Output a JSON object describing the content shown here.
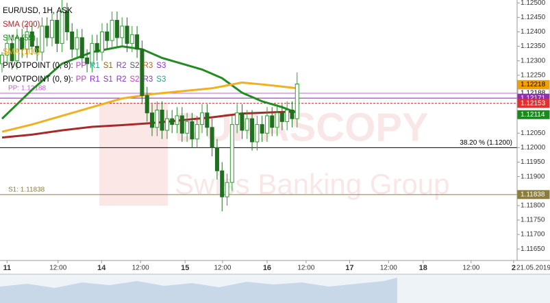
{
  "chart_data": {
    "type": "candlestick",
    "title": "EUR/USD, 1H, ASK",
    "watermark": [
      "DUKASCOPY",
      "Swiss Banking Group"
    ],
    "date_label": "21.05.2019",
    "legend": [
      {
        "text": "SMA (200)",
        "color": "#b22222"
      },
      {
        "text": "SMA (55)",
        "color": "#228b22"
      },
      {
        "text": "SMA (100)",
        "color": "#f0a000"
      }
    ],
    "pivot_legend": [
      {
        "name": "PIVOTPOINT (0, 8):",
        "items": [
          {
            "text": "PP",
            "color": "#c040c0"
          },
          {
            "text": "R1",
            "color": "#2a9d8f"
          },
          {
            "text": "S1",
            "color": "#8b6914"
          },
          {
            "text": "R2",
            "color": "#7b3fa0"
          },
          {
            "text": "S2",
            "color": "#555555"
          },
          {
            "text": "R3",
            "color": "#b5651d"
          },
          {
            "text": "S3",
            "color": "#8a2be2"
          }
        ]
      },
      {
        "name": "PIVOTPOINT (0, 9):",
        "items": [
          {
            "text": "PP",
            "color": "#c040c0"
          },
          {
            "text": "R1",
            "color": "#8a2be2"
          },
          {
            "text": "S1",
            "color": "#7b3fa0"
          },
          {
            "text": "R2",
            "color": "#8a2be2"
          },
          {
            "text": "S2",
            "color": "#c040c0"
          },
          {
            "text": "R3",
            "color": "#7b3fa0"
          },
          {
            "text": "S3",
            "color": "#2a9d8f"
          }
        ]
      }
    ],
    "open": [
      1.1229,
      1.1232,
      1.1236,
      1.123,
      1.1238,
      1.1234,
      1.124,
      1.1235,
      1.1233,
      1.1242,
      1.1238,
      1.1244,
      1.1236,
      1.1247,
      1.124,
      1.1234,
      1.1238,
      1.1231,
      1.1229,
      1.1236,
      1.1233,
      1.124,
      1.1237,
      1.1244,
      1.1238,
      1.1242,
      1.1236,
      1.1239,
      1.1234,
      1.1218,
      1.1212,
      1.1207,
      1.1213,
      1.1206,
      1.121,
      1.1208,
      1.1211,
      1.1205,
      1.1209,
      1.1203,
      1.1208,
      1.1212,
      1.1207,
      1.12,
      1.1192,
      1.1183,
      1.1188,
      1.1208,
      1.1212,
      1.1206,
      1.121,
      1.1202,
      1.1208,
      1.1205,
      1.1211,
      1.1207,
      1.1212,
      1.1209,
      1.1213,
      1.121
    ],
    "high": [
      1.1233,
      1.1239,
      1.1239,
      1.1241,
      1.1241,
      1.1243,
      1.1243,
      1.1238,
      1.1245,
      1.1245,
      1.1247,
      1.1247,
      1.1251,
      1.125,
      1.1243,
      1.1241,
      1.1241,
      1.1234,
      1.1239,
      1.1239,
      1.1243,
      1.1243,
      1.1247,
      1.1247,
      1.1245,
      1.1245,
      1.1242,
      1.1242,
      1.1237,
      1.1221,
      1.1215,
      1.1216,
      1.1216,
      1.1213,
      1.1213,
      1.1214,
      1.1214,
      1.1212,
      1.1212,
      1.1211,
      1.1215,
      1.1215,
      1.121,
      1.1203,
      1.1195,
      1.1191,
      1.1211,
      1.1215,
      1.1215,
      1.1213,
      1.1213,
      1.1211,
      1.1211,
      1.1214,
      1.1214,
      1.1215,
      1.1215,
      1.1216,
      1.1216,
      1.1226
    ],
    "low": [
      1.1226,
      1.1229,
      1.1227,
      1.1227,
      1.1231,
      1.1231,
      1.1232,
      1.123,
      1.123,
      1.1235,
      1.1235,
      1.1233,
      1.1233,
      1.1237,
      1.1231,
      1.1231,
      1.1228,
      1.1226,
      1.1226,
      1.123,
      1.123,
      1.1234,
      1.1234,
      1.1235,
      1.1235,
      1.1233,
      1.1233,
      1.1231,
      1.1215,
      1.1209,
      1.1204,
      1.1204,
      1.1203,
      1.1203,
      1.1205,
      1.1205,
      1.1202,
      1.1202,
      1.12,
      1.12,
      1.1205,
      1.1204,
      1.1197,
      1.1189,
      1.1178,
      1.118,
      1.1185,
      1.1205,
      1.1203,
      1.1203,
      1.1199,
      1.1199,
      1.1202,
      1.1202,
      1.1204,
      1.1204,
      1.1206,
      1.1206,
      1.1207,
      1.1207
    ],
    "close": [
      1.1232,
      1.1236,
      1.123,
      1.1238,
      1.1234,
      1.124,
      1.1235,
      1.1233,
      1.1242,
      1.1238,
      1.1244,
      1.1236,
      1.1247,
      1.124,
      1.1234,
      1.1238,
      1.1231,
      1.1229,
      1.1236,
      1.1233,
      1.124,
      1.1237,
      1.1244,
      1.1238,
      1.1242,
      1.1236,
      1.1239,
      1.1234,
      1.1218,
      1.1212,
      1.1207,
      1.1213,
      1.1206,
      1.121,
      1.1208,
      1.1211,
      1.1205,
      1.1209,
      1.1203,
      1.1208,
      1.1212,
      1.1207,
      1.12,
      1.1192,
      1.1183,
      1.1188,
      1.1208,
      1.1212,
      1.1206,
      1.121,
      1.1202,
      1.1208,
      1.1205,
      1.1211,
      1.1207,
      1.1212,
      1.1209,
      1.1213,
      1.121,
      1.1222
    ],
    "series": [
      {
        "name": "SMA (200)",
        "color": "#a52a2a",
        "x": [
          0,
          6,
          12,
          18,
          24,
          30,
          36,
          42,
          48,
          54,
          59
        ],
        "values": [
          1.12035,
          1.12045,
          1.1206,
          1.12072,
          1.12078,
          1.12085,
          1.12095,
          1.12105,
          1.12118,
          1.12122,
          1.12125
        ]
      },
      {
        "name": "SMA (55)",
        "color": "#228b22",
        "x": [
          0,
          6,
          12,
          18,
          24,
          28,
          32,
          36,
          40,
          44,
          48,
          52,
          56,
          59
        ],
        "values": [
          1.121,
          1.122,
          1.1229,
          1.1233,
          1.1235,
          1.1234,
          1.1231,
          1.1229,
          1.1227,
          1.1224,
          1.1219,
          1.1216,
          1.1214,
          1.1212
        ]
      },
      {
        "name": "SMA (100)",
        "color": "#f0b020",
        "x": [
          0,
          6,
          12,
          18,
          24,
          30,
          36,
          42,
          48,
          54,
          59
        ],
        "values": [
          1.12055,
          1.1208,
          1.1211,
          1.1214,
          1.1217,
          1.12185,
          1.12195,
          1.12205,
          1.12225,
          1.12215,
          1.12205
        ]
      }
    ],
    "levels": [
      {
        "value": 1.12188,
        "label": "PP: 1.12188",
        "color": "#c060d0"
      },
      {
        "value": 1.12171,
        "color": "#8020a0"
      },
      {
        "value": 1.12153,
        "color": "#c02020",
        "dashed": true
      },
      {
        "value": 1.12,
        "label": "38.20 % (1.1200)",
        "color": "#000000"
      },
      {
        "value": 1.11838,
        "label": "S1: 1.11838",
        "color": "#8b7d3a"
      }
    ],
    "price_badges": [
      {
        "value": 1.12218,
        "label": "1.12218",
        "color": "#f0a000",
        "text_color": "#000000"
      },
      {
        "value": 1.12188,
        "label": "1.12188",
        "color": "#ffffff",
        "text_color": "#000000"
      },
      {
        "value": 1.12171,
        "label": "1.12171",
        "color": "#9030b0",
        "text_color": "#ffffff"
      },
      {
        "value": 1.12153,
        "label": "1.12153",
        "color": "#e03030",
        "text_color": "#ffffff"
      },
      {
        "value": 1.12114,
        "label": "1.12114",
        "color": "#1a8a1a",
        "text_color": "#ffffff"
      },
      {
        "value": 1.11838,
        "label": "1.11838",
        "color": "#8b7d3a",
        "text_color": "#ffffff"
      }
    ],
    "ylim": [
      1.11615,
      1.1251
    ],
    "yticks": [
      {
        "value": 1.1165,
        "label": "1.11650"
      },
      {
        "value": 1.117,
        "label": "1.11700"
      },
      {
        "value": 1.1175,
        "label": "1.11750"
      },
      {
        "value": 1.118,
        "label": "1.11800"
      },
      {
        "value": 1.119,
        "label": "1.11900"
      },
      {
        "value": 1.1195,
        "label": "1.11950"
      },
      {
        "value": 1.12,
        "label": "1.12000"
      },
      {
        "value": 1.1205,
        "label": "1.12050"
      },
      {
        "value": 1.1225,
        "label": "1.12250"
      },
      {
        "value": 1.123,
        "label": "1.12300"
      },
      {
        "value": 1.1235,
        "label": "1.12350"
      },
      {
        "value": 1.124,
        "label": "1.12400"
      },
      {
        "value": 1.1245,
        "label": "1.12450"
      },
      {
        "value": 1.125,
        "label": "1.12500"
      }
    ],
    "xlim": [
      -0.41,
      103
    ],
    "xticks": [
      {
        "value": 1.0,
        "label": "11"
      },
      {
        "value": 11.2,
        "label": "12:00"
      },
      {
        "value": 19.9,
        "label": "14"
      },
      {
        "value": 27.7,
        "label": "12:00"
      },
      {
        "value": 36.6,
        "label": "15"
      },
      {
        "value": 44.1,
        "label": "12:00"
      },
      {
        "value": 53.0,
        "label": "16"
      },
      {
        "value": 60.8,
        "label": "12:00"
      },
      {
        "value": 69.5,
        "label": "17"
      },
      {
        "value": 77.3,
        "label": "12:00"
      },
      {
        "value": 84.2,
        "label": "18"
      },
      {
        "value": 93.8,
        "label": "12:00"
      },
      {
        "value": 102.3,
        "label": "2"
      }
    ],
    "bull_color": "#2e9b2e",
    "bear_color": "#1f6f1f"
  }
}
